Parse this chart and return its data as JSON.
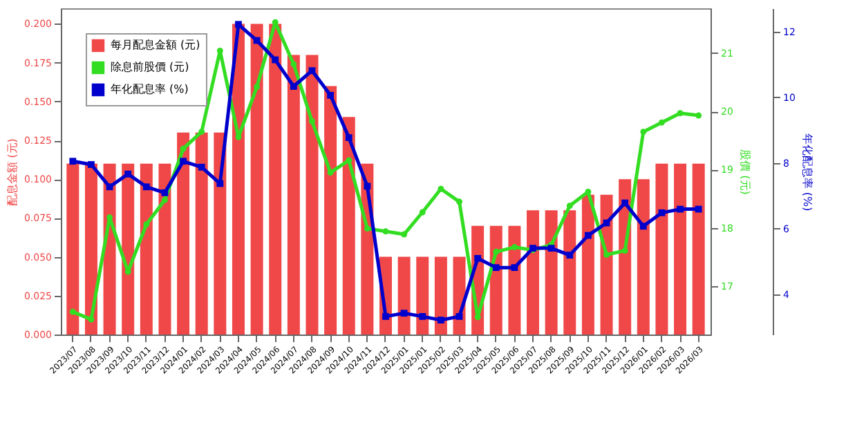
{
  "chart_data": {
    "type": "bar",
    "categories": [
      "2023/07",
      "2023/08",
      "2023/09",
      "2023/10",
      "2023/11",
      "2023/12",
      "2024/01",
      "2024/02",
      "2024/03",
      "2024/04",
      "2024/05",
      "2024/06",
      "2024/07",
      "2024/08",
      "2024/09",
      "2024/10",
      "2024/11",
      "2024/12",
      "2025/01",
      "2025/01",
      "2025/02",
      "2025/03",
      "2025/04",
      "2025/05",
      "2025/06",
      "2025/07",
      "2025/08",
      "2025/09",
      "2025/10",
      "2025/11",
      "2025/12",
      "2026/01",
      "2026/02",
      "2026/03",
      "2026/03"
    ],
    "ylabel": "配息金額 (元)",
    "y2label": "股價 (元)",
    "y3label": "年化配息率 (%)",
    "ylim": [
      0,
      0.21
    ],
    "yticks": [
      {
        "value": 0,
        "label": "0.000"
      },
      {
        "value": 0.025,
        "label": "0.025"
      },
      {
        "value": 0.05,
        "label": "0.050"
      },
      {
        "value": 0.075,
        "label": "0.075"
      },
      {
        "value": 0.1,
        "label": "0.100"
      },
      {
        "value": 0.125,
        "label": "0.125"
      },
      {
        "value": 0.15,
        "label": "0.150"
      },
      {
        "value": 0.175,
        "label": "0.175"
      },
      {
        "value": 0.2,
        "label": "0.200"
      }
    ],
    "y2lim": [
      16.17,
      21.77
    ],
    "y2ticks": [
      17,
      18,
      19,
      20,
      21
    ],
    "y3lim": [
      2.77,
      12.71
    ],
    "y3ticks": [
      4,
      6,
      8,
      10,
      12
    ],
    "grid": false,
    "legend": "top left",
    "series": [
      {
        "name": "每月配息金額 (元)",
        "color": "#f04848",
        "values": [
          0.11,
          0.11,
          0.11,
          0.11,
          0.11,
          0.11,
          0.13,
          0.13,
          0.13,
          0.2,
          0.2,
          0.2,
          0.18,
          0.18,
          0.16,
          0.14,
          0.11,
          0.05,
          0.05,
          0.05,
          0.05,
          0.05,
          0.07,
          0.07,
          0.07,
          0.08,
          0.08,
          0.08,
          0.09,
          0.09,
          0.1,
          0.1,
          0.11,
          0.11,
          0.11
        ]
      },
      {
        "name": "除息前股價 (元)",
        "type": "line",
        "axis": "y2",
        "marker": "circle",
        "color": "#33dd22",
        "values": [
          16.56,
          16.43,
          18.18,
          17.25,
          18.06,
          18.48,
          19.36,
          19.65,
          21.04,
          19.56,
          20.42,
          21.53,
          20.81,
          19.83,
          18.95,
          19.16,
          17.99,
          17.94,
          17.89,
          18.27,
          18.67,
          18.45,
          16.47,
          17.59,
          17.67,
          17.62,
          17.71,
          18.38,
          18.62,
          17.54,
          17.61,
          19.65,
          19.81,
          19.97,
          19.93
        ]
      },
      {
        "name": "年化配息率 (%)",
        "type": "line",
        "axis": "y3",
        "marker": "square",
        "color": "#0000cc",
        "values": [
          8.05,
          7.95,
          7.27,
          7.66,
          7.27,
          7.09,
          8.05,
          7.87,
          7.37,
          12.22,
          11.73,
          11.14,
          10.33,
          10.81,
          10.06,
          8.77,
          7.29,
          3.32,
          3.42,
          3.32,
          3.21,
          3.32,
          5.09,
          4.81,
          4.81,
          5.4,
          5.4,
          5.19,
          5.79,
          6.17,
          6.78,
          6.07,
          6.48,
          6.59,
          6.59
        ]
      }
    ]
  }
}
